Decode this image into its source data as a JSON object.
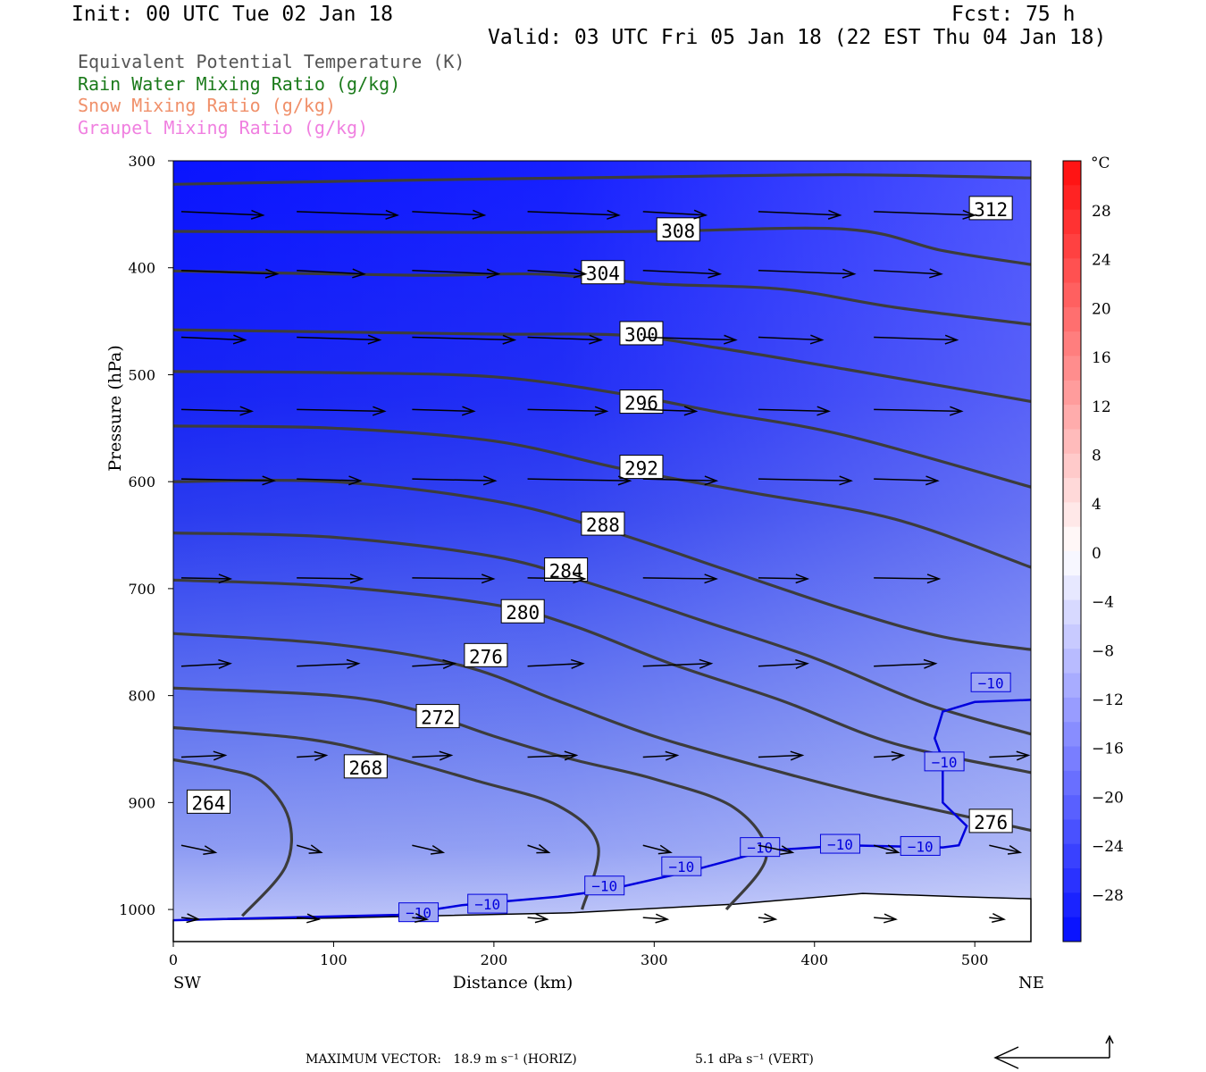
{
  "header": {
    "init": "Init: 00 UTC Tue 02 Jan 18",
    "fcst": "Fcst:   75 h",
    "valid": "Valid: 03 UTC Fri 05 Jan 18 (22 EST Thu 04 Jan 18)"
  },
  "legend": [
    {
      "label": "Equivalent Potential Temperature (K)",
      "color": "#555555"
    },
    {
      "label": "Rain Water Mixing Ratio (g/kg)",
      "color": "#1a7a1a"
    },
    {
      "label": "Snow Mixing Ratio (g/kg)",
      "color": "#f0906a"
    },
    {
      "label": "Graupel Mixing Ratio (g/kg)",
      "color": "#f080e0"
    }
  ],
  "chart_data": {
    "type": "cross-section",
    "xlabel": "Distance (km)",
    "ylabel": "Pressure (hPa)",
    "xlim": [
      0,
      535
    ],
    "ylim": [
      1030,
      300
    ],
    "x_ticks": [
      0,
      100,
      200,
      300,
      400,
      500
    ],
    "y_ticks": [
      300,
      400,
      500,
      600,
      700,
      800,
      900,
      1000
    ],
    "x_left_label": "SW",
    "x_right_label": "NE",
    "colorbar": {
      "unit": "°C",
      "labels": [
        "28",
        "24",
        "20",
        "16",
        "12",
        "8",
        "4",
        "0",
        "−4",
        "−8",
        "−12",
        "−16",
        "−20",
        "−24",
        "−28"
      ]
    },
    "theta_e_contours": [
      {
        "value": 312,
        "points": [
          [
            0,
            322
          ],
          [
            150,
            318
          ],
          [
            300,
            315
          ],
          [
            420,
            313
          ],
          [
            535,
            316
          ]
        ],
        "label_at": [
          510,
          345
        ]
      },
      {
        "value": 308,
        "points": [
          [
            0,
            366
          ],
          [
            200,
            367
          ],
          [
            300,
            366
          ],
          [
            420,
            364
          ],
          [
            480,
            384
          ],
          [
            535,
            397
          ]
        ],
        "label_at": [
          315,
          365
        ]
      },
      {
        "value": 304,
        "points": [
          [
            0,
            403
          ],
          [
            150,
            407
          ],
          [
            230,
            406
          ],
          [
            300,
            415
          ],
          [
            380,
            420
          ],
          [
            450,
            437
          ],
          [
            535,
            453
          ]
        ],
        "label_at": [
          268,
          405
        ]
      },
      {
        "value": 300,
        "points": [
          [
            0,
            458
          ],
          [
            100,
            460
          ],
          [
            200,
            462
          ],
          [
            280,
            463
          ],
          [
            340,
            475
          ],
          [
            420,
            495
          ],
          [
            535,
            525
          ]
        ],
        "label_at": [
          292,
          462
        ]
      },
      {
        "value": 296,
        "points": [
          [
            0,
            497
          ],
          [
            100,
            498
          ],
          [
            200,
            502
          ],
          [
            280,
            518
          ],
          [
            340,
            535
          ],
          [
            420,
            557
          ],
          [
            535,
            605
          ]
        ],
        "label_at": [
          292,
          526
        ]
      },
      {
        "value": 292,
        "points": [
          [
            0,
            548
          ],
          [
            100,
            550
          ],
          [
            200,
            562
          ],
          [
            280,
            588
          ],
          [
            360,
            610
          ],
          [
            450,
            635
          ],
          [
            535,
            680
          ]
        ],
        "label_at": [
          292,
          587
        ]
      },
      {
        "value": 288,
        "points": [
          [
            0,
            600
          ],
          [
            100,
            600
          ],
          [
            200,
            618
          ],
          [
            270,
            645
          ],
          [
            340,
            680
          ],
          [
            420,
            720
          ],
          [
            480,
            745
          ],
          [
            535,
            757
          ]
        ],
        "label_at": [
          268,
          640
        ]
      },
      {
        "value": 284,
        "points": [
          [
            0,
            648
          ],
          [
            100,
            652
          ],
          [
            200,
            670
          ],
          [
            260,
            695
          ],
          [
            330,
            730
          ],
          [
            400,
            765
          ],
          [
            470,
            808
          ],
          [
            535,
            836
          ]
        ],
        "label_at": [
          245,
          683
        ]
      },
      {
        "value": 280,
        "points": [
          [
            0,
            692
          ],
          [
            100,
            698
          ],
          [
            200,
            715
          ],
          [
            250,
            735
          ],
          [
            310,
            770
          ],
          [
            380,
            805
          ],
          [
            450,
            845
          ],
          [
            535,
            872
          ]
        ],
        "label_at": [
          218,
          722
        ]
      },
      {
        "value": 276,
        "points": [
          [
            0,
            742
          ],
          [
            100,
            752
          ],
          [
            180,
            772
          ],
          [
            240,
            805
          ],
          [
            300,
            838
          ],
          [
            370,
            868
          ],
          [
            440,
            895
          ],
          [
            535,
            926
          ]
        ],
        "label_at": [
          195,
          763
        ]
      },
      {
        "value": 272,
        "points": [
          [
            0,
            793
          ],
          [
            100,
            800
          ],
          [
            150,
            813
          ],
          [
            200,
            838
          ],
          [
            250,
            860
          ],
          [
            300,
            878
          ],
          [
            350,
            905
          ],
          [
            370,
            950
          ],
          [
            345,
            1000
          ]
        ],
        "label_at": [
          165,
          820
        ]
      },
      {
        "value": 268,
        "points": [
          [
            0,
            830
          ],
          [
            80,
            840
          ],
          [
            130,
            855
          ],
          [
            190,
            880
          ],
          [
            240,
            903
          ],
          [
            265,
            940
          ],
          [
            255,
            1000
          ]
        ],
        "label_at": [
          120,
          867
        ]
      },
      {
        "value": 264,
        "points": [
          [
            0,
            860
          ],
          [
            30,
            868
          ],
          [
            55,
            880
          ],
          [
            72,
            915
          ],
          [
            70,
            960
          ],
          [
            43,
            1006
          ]
        ],
        "label_at": [
          22,
          900
        ]
      },
      {
        "value": 276,
        "points": [],
        "label_at": [
          510,
          918
        ]
      }
    ],
    "isotherm_minus10": [
      [
        0,
        1010
      ],
      [
        140,
        1005
      ],
      [
        180,
        996
      ],
      [
        240,
        988
      ],
      [
        270,
        982
      ],
      [
        320,
        965
      ],
      [
        370,
        945
      ],
      [
        420,
        940
      ],
      [
        480,
        942
      ],
      [
        490,
        940
      ],
      [
        495,
        922
      ],
      [
        480,
        900
      ],
      [
        480,
        860
      ],
      [
        475,
        840
      ],
      [
        480,
        815
      ],
      [
        500,
        806
      ],
      [
        535,
        804
      ]
    ],
    "isotherm_labels": [
      [
        153,
        1003
      ],
      [
        196,
        995
      ],
      [
        269,
        978
      ],
      [
        317,
        960
      ],
      [
        366,
        942
      ],
      [
        416,
        939
      ],
      [
        466,
        941
      ],
      [
        481,
        862
      ],
      [
        510,
        788
      ]
    ],
    "max_vector": {
      "prefix": "MAXIMUM VECTOR:",
      "horiz": "18.9 m s⁻¹ (HORIZ)",
      "vert": "5.1 dPa s⁻¹ (VERT)"
    }
  }
}
